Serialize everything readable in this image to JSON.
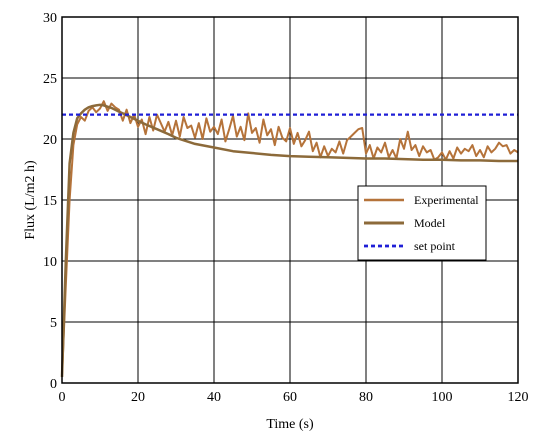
{
  "chart_data": {
    "type": "line",
    "title": "",
    "xlabel": "Time (s)",
    "ylabel": "Flux (L/m2 h)",
    "xlim": [
      0,
      120
    ],
    "ylim": [
      0,
      30
    ],
    "x_ticks": [
      "0",
      "20",
      "40",
      "60",
      "80",
      "100",
      "120"
    ],
    "y_ticks": [
      "0",
      "5",
      "10",
      "15",
      "20",
      "25",
      "30"
    ],
    "grid": true,
    "legend_position": "center-right",
    "series": [
      {
        "name": "Experimental",
        "color": "#b5733a",
        "x": [
          0,
          1,
          2,
          3,
          4,
          5,
          6,
          7,
          8,
          9,
          10,
          11,
          12,
          13,
          14,
          15,
          16,
          17,
          18,
          19,
          20,
          21,
          22,
          23,
          24,
          25,
          26,
          27,
          28,
          29,
          30,
          31,
          32,
          33,
          34,
          35,
          36,
          37,
          38,
          39,
          40,
          41,
          42,
          43,
          44,
          45,
          46,
          47,
          48,
          49,
          50,
          51,
          52,
          53,
          54,
          55,
          56,
          57,
          58,
          59,
          60,
          61,
          62,
          63,
          64,
          65,
          66,
          67,
          68,
          69,
          70,
          71,
          72,
          73,
          74,
          75,
          76,
          77,
          78,
          79,
          80,
          81,
          82,
          83,
          84,
          85,
          86,
          87,
          88,
          89,
          90,
          91,
          92,
          93,
          94,
          95,
          96,
          97,
          98,
          99,
          100,
          101,
          102,
          103,
          104,
          105,
          106,
          107,
          108,
          109,
          110,
          111,
          112,
          113,
          114,
          115,
          116,
          117,
          118,
          119,
          120
        ],
        "y": [
          0.5,
          8,
          15,
          19.5,
          21.2,
          21.8,
          21.5,
          22.3,
          22.6,
          22.2,
          22.5,
          23.1,
          22.3,
          22.9,
          22.6,
          22.4,
          21.5,
          22.4,
          21.3,
          22.0,
          21.0,
          21.6,
          20.4,
          21.8,
          20.7,
          22.0,
          21.3,
          20.6,
          21.4,
          20.3,
          21.5,
          20.2,
          21.8,
          20.9,
          21.1,
          20.1,
          21.3,
          20.0,
          21.7,
          20.6,
          21.0,
          20.4,
          21.6,
          19.8,
          20.8,
          21.9,
          20.2,
          21.0,
          19.9,
          22.1,
          20.5,
          20.9,
          19.7,
          21.6,
          20.3,
          20.8,
          19.5,
          21.0,
          20.1,
          19.8,
          20.9,
          19.6,
          20.5,
          19.4,
          19.9,
          20.6,
          19.0,
          19.7,
          18.5,
          19.4,
          18.6,
          19.2,
          18.9,
          19.8,
          18.8,
          19.9,
          20.2,
          20.5,
          20.8,
          20.9,
          18.8,
          19.5,
          18.4,
          19.3,
          18.9,
          19.7,
          18.5,
          19.1,
          18.4,
          20.0,
          19.2,
          20.6,
          19.1,
          19.5,
          18.6,
          19.4,
          18.9,
          19.1,
          18.3,
          18.5,
          18.9,
          18.3,
          19.0,
          18.4,
          19.3,
          18.8,
          19.2,
          19.0,
          19.5,
          18.6,
          19.1,
          18.5,
          19.4,
          18.9,
          19.2,
          19.7,
          19.4,
          19.5,
          18.8,
          19.1,
          18.9
        ]
      },
      {
        "name": "Model",
        "color": "#8c6a3a",
        "x": [
          0,
          1,
          2,
          3,
          4,
          5,
          6,
          7,
          8,
          9,
          10,
          11,
          12,
          13,
          14,
          15,
          16,
          18,
          20,
          22,
          25,
          28,
          30,
          35,
          40,
          45,
          50,
          55,
          60,
          65,
          70,
          75,
          80,
          85,
          90,
          95,
          100,
          105,
          110,
          115,
          120
        ],
        "y": [
          0.5,
          10,
          18,
          20.5,
          21.7,
          22.1,
          22.4,
          22.6,
          22.7,
          22.75,
          22.8,
          22.75,
          22.65,
          22.55,
          22.4,
          22.25,
          22.1,
          21.8,
          21.5,
          21.2,
          20.8,
          20.4,
          20.1,
          19.6,
          19.3,
          19.0,
          18.85,
          18.7,
          18.6,
          18.55,
          18.5,
          18.45,
          18.4,
          18.4,
          18.35,
          18.3,
          18.3,
          18.25,
          18.25,
          18.2,
          18.2
        ]
      },
      {
        "name": "set point",
        "color": "#1f1fd6",
        "x": [
          0,
          120
        ],
        "y": [
          22,
          22
        ]
      }
    ]
  }
}
